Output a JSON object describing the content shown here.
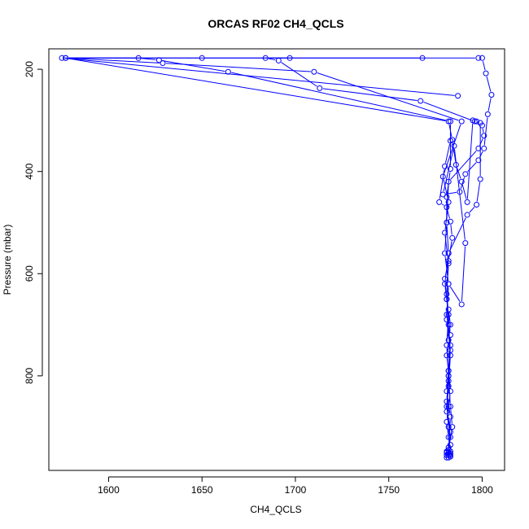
{
  "chart_data": {
    "type": "line",
    "title": "ORCAS RF02 CH4_QCLS",
    "xlabel": "CH4_QCLS",
    "ylabel": "Pressure (mbar)",
    "xlim": [
      1568,
      1812
    ],
    "ylim": [
      985,
      160
    ],
    "y_inverted": true,
    "xticks": [
      1600,
      1650,
      1700,
      1750,
      1800
    ],
    "yticks": [
      200,
      400,
      600,
      800
    ],
    "grid": false,
    "legend": "none",
    "series_color": "#0000ff",
    "marker": "open-circle",
    "series": [
      {
        "x": [
          1787,
          1575,
          1616,
          1627,
          1664,
          1783,
          1783,
          1781,
          1781,
          1782,
          1780,
          1782,
          1781,
          1782,
          1783,
          1784,
          1782,
          1783,
          1781,
          1783
        ],
        "y": [
          252,
          178,
          178,
          182,
          205,
          302,
          395,
          450,
          500,
          560,
          620,
          680,
          740,
          800,
          860,
          900,
          940,
          955,
          960,
          952
        ]
      },
      {
        "x": [
          1798,
          1650,
          1577,
          1629,
          1710,
          1789,
          1779,
          1782,
          1780,
          1782,
          1781,
          1782,
          1783,
          1782,
          1781,
          1783,
          1782,
          1783,
          1781,
          1782
        ],
        "y": [
          178,
          178,
          178,
          188,
          205,
          302,
          410,
          460,
          520,
          580,
          640,
          700,
          760,
          820,
          870,
          920,
          945,
          958,
          950,
          955
        ]
      },
      {
        "x": [
          1768,
          1684,
          1691,
          1713,
          1767,
          1796,
          1800,
          1801,
          1798,
          1782,
          1781,
          1780,
          1782,
          1781,
          1783,
          1782,
          1781,
          1783,
          1782,
          1781
        ],
        "y": [
          178,
          178,
          183,
          237,
          262,
          302,
          310,
          330,
          355,
          420,
          500,
          560,
          620,
          690,
          750,
          810,
          860,
          910,
          945,
          955
        ]
      },
      {
        "x": [
          1800,
          1802,
          1805,
          1803,
          1801,
          1798,
          1791,
          1788,
          1779,
          1785,
          1791,
          1789,
          1782,
          1781,
          1783,
          1782,
          1781,
          1782,
          1783,
          1781
        ],
        "y": [
          178,
          208,
          250,
          288,
          355,
          378,
          405,
          440,
          445,
          350,
          540,
          660,
          620,
          680,
          740,
          800,
          850,
          900,
          935,
          948
        ]
      },
      {
        "x": [
          1697,
          1577,
          1782,
          1784,
          1786,
          1789,
          1792,
          1795,
          1797,
          1799,
          1799,
          1797,
          1792,
          1782,
          1781,
          1783,
          1782,
          1781,
          1783,
          1782
        ],
        "y": [
          178,
          178,
          302,
          338,
          387,
          420,
          460,
          300,
          302,
          305,
          415,
          465,
          485,
          560,
          650,
          720,
          790,
          830,
          880,
          950
        ]
      },
      {
        "x": [
          1783,
          1780,
          1777,
          1781,
          1783,
          1784,
          1782,
          1780,
          1781,
          1782,
          1783,
          1782,
          1781,
          1782,
          1783,
          1782,
          1781,
          1782,
          1783,
          1782
        ],
        "y": [
          340,
          390,
          460,
          470,
          498,
          530,
          575,
          610,
          650,
          670,
          700,
          730,
          760,
          790,
          830,
          860,
          890,
          920,
          948,
          960
        ]
      }
    ]
  }
}
